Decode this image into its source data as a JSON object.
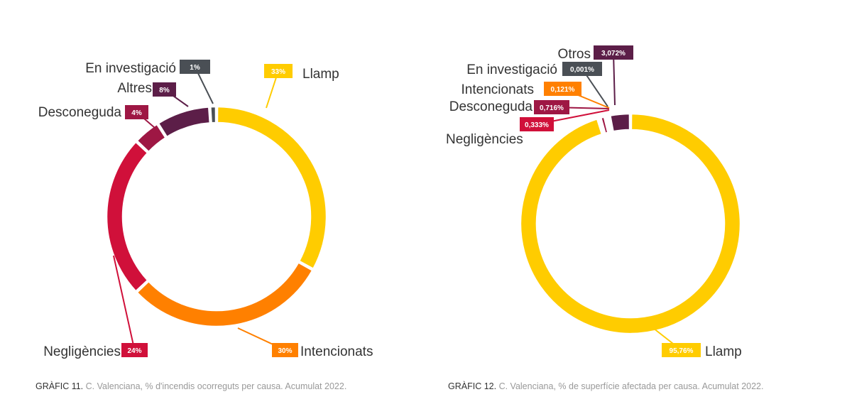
{
  "chart_data": [
    {
      "type": "pie",
      "variant": "donut",
      "categories": [
        "Llamp",
        "Intencionats",
        "Negligències",
        "Desconeguda",
        "Altres",
        "En investigació"
      ],
      "values": [
        33,
        30,
        24,
        4,
        8,
        1
      ],
      "value_labels": [
        "33%",
        "30%",
        "24%",
        "4%",
        "8%",
        "1%"
      ],
      "colors": [
        "#FFCC00",
        "#FF8000",
        "#D0103A",
        "#9E1744",
        "#5C1E48",
        "#4A4F55"
      ],
      "caption_label": "GRÀFIC 11.",
      "caption_text": "C. Valenciana, % d'incendis ocorreguts per causa. Acumulat 2022."
    },
    {
      "type": "pie",
      "variant": "donut",
      "categories": [
        "Llamp",
        "Negligències",
        "Desconeguda",
        "Intencionats",
        "En investigació",
        "Otros"
      ],
      "values": [
        95.76,
        0.333,
        0.716,
        0.121,
        0.001,
        3.072
      ],
      "value_labels": [
        "95,76%",
        "0,333%",
        "0,716%",
        "0,121%",
        "0,001%",
        "3,072%"
      ],
      "colors": [
        "#FFCC00",
        "#D0103A",
        "#9E1744",
        "#FF8000",
        "#4A4F55",
        "#5C1E48"
      ],
      "caption_label": "GRÀFIC 12.",
      "caption_text": "C. Valenciana, % de superfície afectada per causa. Acumulat 2022."
    }
  ]
}
